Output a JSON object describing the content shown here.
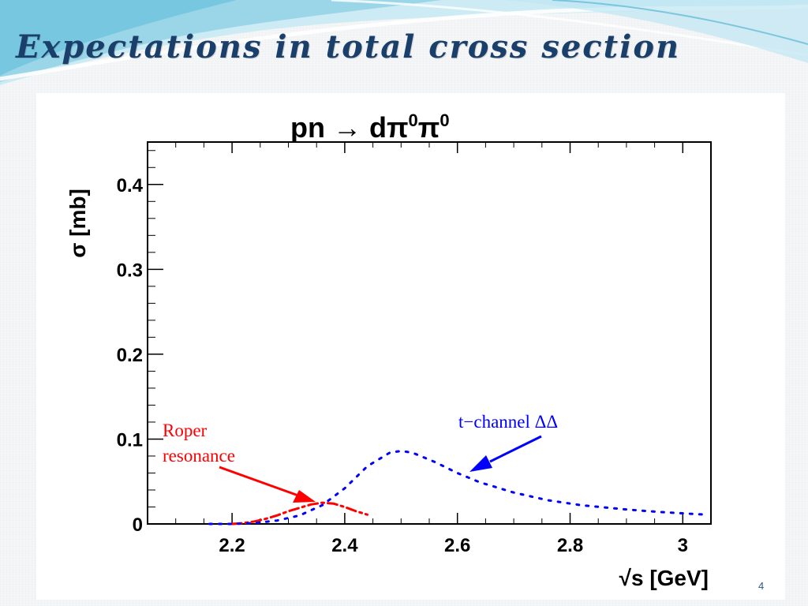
{
  "slide": {
    "title": "Expectations in total cross section",
    "page_number": "4"
  },
  "colors": {
    "title": "#1b3f6b",
    "roper": "#ff0000",
    "t_channel": "#0000ff",
    "swoosh_light": "#bfe6f2",
    "swoosh_mid": "#6fc3de"
  },
  "chart_data": {
    "type": "line",
    "title_parts": {
      "base": "pn → dπ",
      "sup1": "0",
      "mid": "π",
      "sup2": "0"
    },
    "xlabel": "√s [GeV]",
    "ylabel": "σ [mb]",
    "xlim": [
      2.05,
      3.05
    ],
    "ylim": [
      0,
      0.45
    ],
    "x_ticks": [
      "2.2",
      "2.4",
      "2.6",
      "2.8",
      "3"
    ],
    "x_tick_values": [
      2.2,
      2.4,
      2.6,
      2.8,
      3.0
    ],
    "y_ticks": [
      "0",
      "0.1",
      "0.2",
      "0.3",
      "0.4"
    ],
    "y_tick_values": [
      0,
      0.1,
      0.2,
      0.3,
      0.4
    ],
    "grid": false,
    "series": [
      {
        "name": "Roper resonance",
        "label_lines": [
          "Roper",
          "resonance"
        ],
        "color": "#ff0000",
        "style": "dash-dot",
        "x": [
          2.2,
          2.22,
          2.24,
          2.26,
          2.28,
          2.3,
          2.32,
          2.34,
          2.36,
          2.38,
          2.4,
          2.42,
          2.44
        ],
        "y": [
          0.0,
          0.001,
          0.003,
          0.006,
          0.01,
          0.015,
          0.019,
          0.023,
          0.025,
          0.024,
          0.02,
          0.015,
          0.011
        ]
      },
      {
        "name": "t−channel ΔΔ",
        "label_lines": [
          "t−channel ΔΔ"
        ],
        "color": "#0000ff",
        "style": "dotted",
        "x": [
          2.16,
          2.2,
          2.24,
          2.28,
          2.32,
          2.36,
          2.4,
          2.44,
          2.48,
          2.5,
          2.52,
          2.56,
          2.6,
          2.64,
          2.7,
          2.76,
          2.82,
          2.9,
          2.96,
          3.04
        ],
        "y": [
          0.0,
          0.0,
          0.001,
          0.004,
          0.01,
          0.022,
          0.042,
          0.068,
          0.084,
          0.086,
          0.084,
          0.073,
          0.06,
          0.049,
          0.037,
          0.028,
          0.022,
          0.017,
          0.014,
          0.011
        ]
      }
    ]
  }
}
